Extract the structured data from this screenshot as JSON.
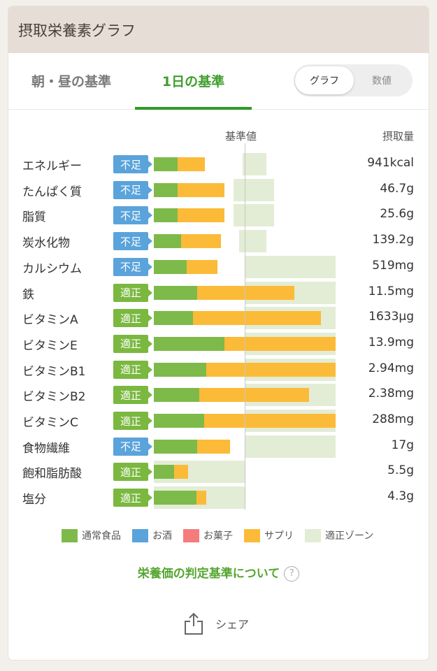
{
  "header": {
    "title": "摂取栄養素グラフ"
  },
  "tabs": [
    {
      "label": "朝・昼の基準"
    },
    {
      "label": "1日の基準"
    }
  ],
  "toggle": {
    "graph": "グラフ",
    "numeric": "数値"
  },
  "columns": {
    "reference": "基準値",
    "intake": "摂取量"
  },
  "badges": {
    "low": "不足",
    "ok": "適正"
  },
  "nutrients": [
    {
      "name": "エネルギー",
      "status": "low",
      "amount": "941kcal",
      "green": 0.26,
      "orange": 0.3,
      "zone_start": 0.98,
      "zone_end": 1.24
    },
    {
      "name": "たんぱく質",
      "status": "low",
      "amount": "46.7g",
      "green": 0.26,
      "orange": 0.52,
      "zone_start": 0.88,
      "zone_end": 1.32
    },
    {
      "name": "脂質",
      "status": "low",
      "amount": "25.6g",
      "green": 0.26,
      "orange": 0.52,
      "zone_start": 0.88,
      "zone_end": 1.32
    },
    {
      "name": "炭水化物",
      "status": "low",
      "amount": "139.2g",
      "green": 0.3,
      "orange": 0.44,
      "zone_start": 0.94,
      "zone_end": 1.24
    },
    {
      "name": "カルシウム",
      "status": "low",
      "amount": "519mg",
      "green": 0.36,
      "orange": 0.34,
      "zone_start": 1.0,
      "zone_end": 2.0
    },
    {
      "name": "鉄",
      "status": "ok",
      "amount": "11.5mg",
      "green": 0.48,
      "orange": 1.07,
      "zone_start": 1.0,
      "zone_end": 2.0
    },
    {
      "name": "ビタミンA",
      "status": "ok",
      "amount": "1633μg",
      "green": 0.43,
      "orange": 1.41,
      "zone_start": 1.0,
      "zone_end": 2.0
    },
    {
      "name": "ビタミンE",
      "status": "ok",
      "amount": "13.9mg",
      "green": 0.78,
      "orange": 1.22,
      "zone_start": 1.0,
      "zone_end": 2.0
    },
    {
      "name": "ビタミンB1",
      "status": "ok",
      "amount": "2.94mg",
      "green": 0.58,
      "orange": 1.42,
      "zone_start": 1.0,
      "zone_end": 2.0
    },
    {
      "name": "ビタミンB2",
      "status": "ok",
      "amount": "2.38mg",
      "green": 0.5,
      "orange": 1.21,
      "zone_start": 1.0,
      "zone_end": 2.0
    },
    {
      "name": "ビタミンC",
      "status": "ok",
      "amount": "288mg",
      "green": 0.55,
      "orange": 1.45,
      "zone_start": 1.0,
      "zone_end": 2.0
    },
    {
      "name": "食物繊維",
      "status": "low",
      "amount": "17g",
      "green": 0.48,
      "orange": 0.36,
      "zone_start": 1.0,
      "zone_end": 2.0
    },
    {
      "name": "飽和脂肪酸",
      "status": "ok",
      "amount": "5.5g",
      "green": 0.22,
      "orange": 0.16,
      "zone_start": 0.0,
      "zone_end": 1.0
    },
    {
      "name": "塩分",
      "status": "ok",
      "amount": "4.3g",
      "green": 0.47,
      "orange": 0.11,
      "zone_start": 0.0,
      "zone_end": 1.0
    }
  ],
  "legend": [
    {
      "label": "通常食品",
      "color": "#7dba4a"
    },
    {
      "label": "お酒",
      "color": "#5aa3db"
    },
    {
      "label": "お菓子",
      "color": "#f47c7c"
    },
    {
      "label": "サプリ",
      "color": "#fbbb38"
    },
    {
      "label": "適正ゾーン",
      "color": "#e3ecd5"
    }
  ],
  "link": {
    "label": "栄養価の判定基準について"
  },
  "share": {
    "label": "シェア"
  }
}
